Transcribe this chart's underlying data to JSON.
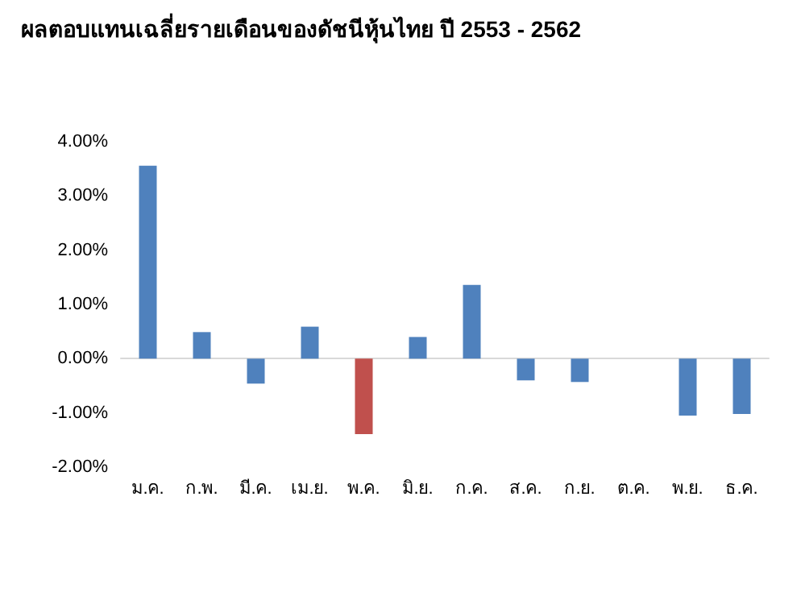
{
  "chart_data": {
    "type": "bar",
    "title": "ผลตอบแทนเฉลี่ยรายเดือนของดัชนีหุ้นไทย ปี 2553 - 2562",
    "categories": [
      "ม.ค.",
      "ก.พ.",
      "มี.ค.",
      "เม.ย.",
      "พ.ค.",
      "มิ.ย.",
      "ก.ค.",
      "ส.ค.",
      "ก.ย.",
      "ต.ค.",
      "พ.ย.",
      "ธ.ค."
    ],
    "values": [
      3.56,
      0.49,
      -0.46,
      0.59,
      -1.39,
      0.4,
      1.36,
      -0.4,
      -0.43,
      0,
      -1.05,
      -1.02
    ],
    "colors": [
      "#4f81bd",
      "#4f81bd",
      "#4f81bd",
      "#4f81bd",
      "#c0504d",
      "#4f81bd",
      "#4f81bd",
      "#4f81bd",
      "#4f81bd",
      "#4f81bd",
      "#4f81bd",
      "#4f81bd"
    ],
    "ylim": [
      -2,
      4
    ],
    "yticks": [
      {
        "value": -2,
        "label": "-2.00%"
      },
      {
        "value": -1,
        "label": "-1.00%"
      },
      {
        "value": 0,
        "label": "0.00%"
      },
      {
        "value": 1,
        "label": "1.00%"
      },
      {
        "value": 2,
        "label": "2.00%"
      },
      {
        "value": 3,
        "label": "3.00%"
      },
      {
        "value": 4,
        "label": "4.00%"
      }
    ]
  }
}
